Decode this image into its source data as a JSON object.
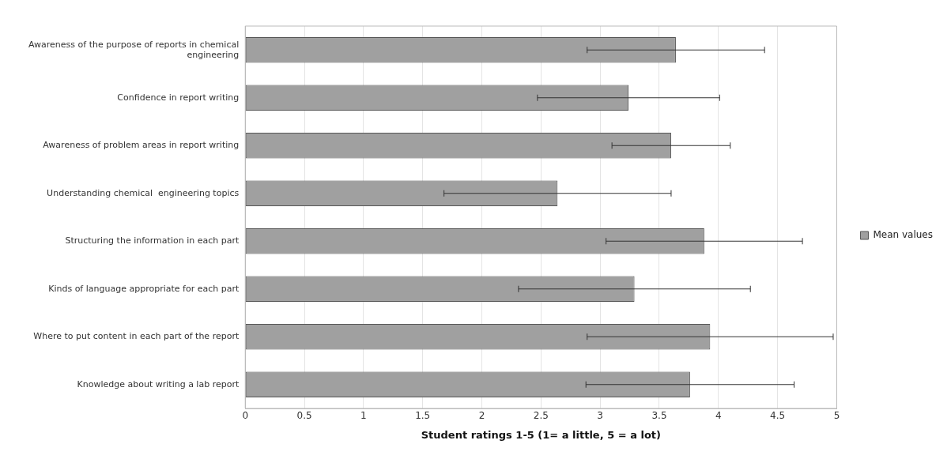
{
  "chart_data": {
    "type": "bar",
    "orientation": "horizontal",
    "xlabel": "Student ratings 1-5 (1= a little, 5 = a lot)",
    "categories": [
      "Awareness of the purpose of reports in chemical engineering",
      "Confidence in report writing",
      "Awareness of problem areas in report writing",
      "Understanding chemical  engineering topics",
      "Structuring the information in each part",
      "Kinds of language appropriate for each part",
      "Where to put content in each part of the report",
      "Knowledge about writing a lab report"
    ],
    "series": [
      {
        "name": "Mean values",
        "color": "#a0a0a0",
        "values": [
          3.64,
          3.24,
          3.6,
          2.64,
          3.88,
          3.29,
          3.93,
          3.76
        ],
        "errors": [
          0.75,
          0.77,
          0.5,
          0.96,
          0.83,
          0.98,
          1.04,
          0.88
        ]
      }
    ],
    "xlim": [
      0,
      5
    ],
    "xticks": [
      0,
      0.5,
      1,
      1.5,
      2,
      2.5,
      3,
      3.5,
      4,
      4.5,
      5
    ],
    "grid": "x",
    "legend": "right"
  }
}
